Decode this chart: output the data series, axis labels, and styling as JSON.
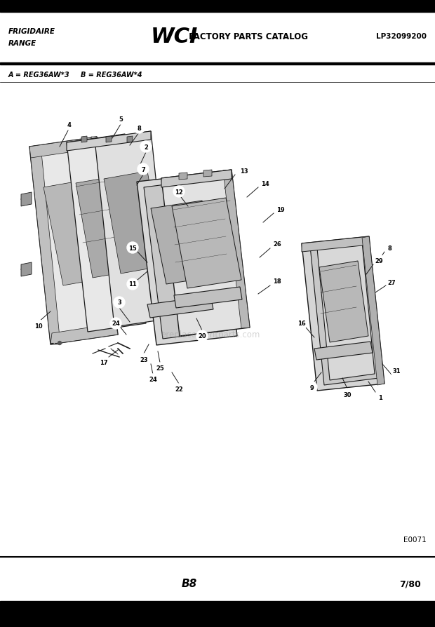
{
  "title_left_line1": "FRIGIDAIRE",
  "title_left_line2": "RANGE",
  "title_wci": "WCI",
  "title_catalog": " FACTORY PARTS CATALOG",
  "title_right": "LP32099200",
  "model_a": "A = REG36AW*3",
  "model_b": "B = REG36AW*4",
  "footer_center": "B8",
  "footer_right": "7/80",
  "diagram_id": "E0071",
  "bg_color": "#ffffff",
  "header_bg": "#000000",
  "line_color": "#1a1a1a",
  "panel_light": "#e8e8e8",
  "panel_mid": "#cccccc",
  "panel_dark": "#b0b0b0",
  "panel_darker": "#999999",
  "watermark": "ereplacementparts.com"
}
